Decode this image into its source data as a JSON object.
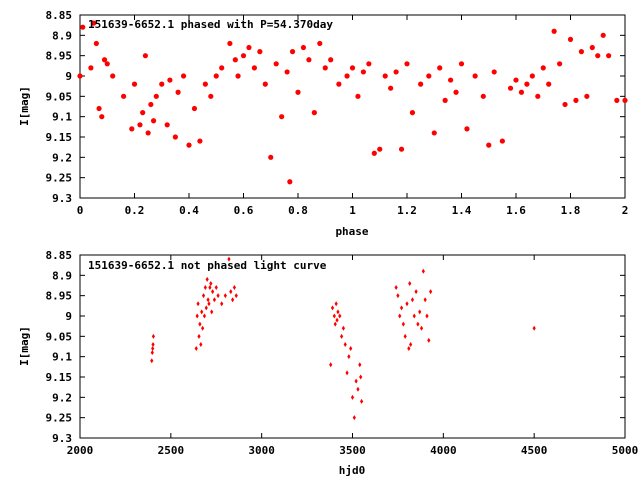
{
  "chart_data": [
    {
      "type": "scatter",
      "title": "151639-6652.1 phased with P=54.370day",
      "xlabel": "phase",
      "ylabel": "I[mag]",
      "xlim": [
        0,
        2
      ],
      "ylim": [
        8.85,
        9.3
      ],
      "y_inverted": true,
      "xticks": [
        "0",
        "0.2",
        "0.4",
        "0.6",
        "0.8",
        "1",
        "1.2",
        "1.4",
        "1.6",
        "1.8",
        "2"
      ],
      "yticks": [
        "8.85",
        "8.9",
        "8.95",
        "9",
        "9.05",
        "9.1",
        "9.15",
        "9.2",
        "9.25",
        "9.3"
      ],
      "grid": false,
      "marker_color": "#ff0000",
      "x": [
        0.0,
        0.01,
        0.04,
        0.05,
        0.06,
        0.07,
        0.08,
        0.09,
        0.1,
        0.12,
        0.16,
        0.19,
        0.2,
        0.22,
        0.23,
        0.24,
        0.25,
        0.26,
        0.27,
        0.28,
        0.3,
        0.32,
        0.33,
        0.35,
        0.36,
        0.38,
        0.4,
        0.42,
        0.44,
        0.46,
        0.48,
        0.5,
        0.52,
        0.55,
        0.57,
        0.58,
        0.6,
        0.62,
        0.64,
        0.66,
        0.68,
        0.7,
        0.72,
        0.74,
        0.76,
        0.77,
        0.78,
        0.8,
        0.82,
        0.84,
        0.86,
        0.88,
        0.9,
        0.92,
        0.95,
        0.98,
        1.0,
        1.02,
        1.04,
        1.06,
        1.08,
        1.1,
        1.12,
        1.14,
        1.16,
        1.18,
        1.2,
        1.22,
        1.25,
        1.28,
        1.3,
        1.32,
        1.34,
        1.36,
        1.38,
        1.4,
        1.42,
        1.45,
        1.48,
        1.5,
        1.52,
        1.55,
        1.58,
        1.6,
        1.62,
        1.64,
        1.66,
        1.68,
        1.7,
        1.72,
        1.74,
        1.76,
        1.78,
        1.8,
        1.82,
        1.84,
        1.86,
        1.88,
        1.9,
        1.92,
        1.94,
        1.97,
        2.0
      ],
      "y": [
        9.0,
        8.88,
        8.98,
        8.87,
        8.92,
        9.08,
        9.1,
        8.96,
        8.97,
        9.0,
        9.05,
        9.13,
        9.02,
        9.12,
        9.09,
        8.95,
        9.14,
        9.07,
        9.11,
        9.05,
        9.02,
        9.12,
        9.01,
        9.15,
        9.04,
        9.0,
        9.17,
        9.08,
        9.16,
        9.02,
        9.05,
        9.0,
        8.98,
        8.92,
        8.96,
        9.0,
        8.95,
        8.93,
        8.98,
        8.94,
        9.02,
        9.2,
        8.97,
        9.1,
        8.99,
        9.26,
        8.94,
        9.04,
        8.93,
        8.96,
        9.09,
        8.92,
        8.98,
        8.96,
        9.02,
        9.0,
        8.98,
        9.05,
        8.99,
        8.97,
        9.19,
        9.18,
        9.0,
        9.03,
        8.99,
        9.18,
        8.97,
        9.09,
        9.02,
        9.0,
        9.14,
        8.98,
        9.06,
        9.01,
        9.04,
        8.97,
        9.13,
        9.0,
        9.05,
        9.17,
        8.99,
        9.16,
        9.03,
        9.01,
        9.04,
        9.02,
        9.0,
        9.05,
        8.98,
        9.02,
        8.89,
        8.97,
        9.07,
        8.91,
        9.06,
        8.94,
        9.05,
        8.93,
        8.95,
        8.9,
        8.95,
        9.06,
        9.06
      ],
      "tag": "phased"
    },
    {
      "type": "scatter",
      "title": "151639-6652.1 not phased light curve",
      "xlabel": "hjd0",
      "ylabel": "I[mag]",
      "xlim": [
        2000,
        5000
      ],
      "ylim": [
        8.85,
        9.3
      ],
      "y_inverted": true,
      "xticks": [
        "2000",
        "2500",
        "3000",
        "3500",
        "4000",
        "4500",
        "5000"
      ],
      "yticks": [
        "8.85",
        "8.9",
        "8.95",
        "9",
        "9.05",
        "9.1",
        "9.15",
        "9.2",
        "9.25",
        "9.3"
      ],
      "grid": false,
      "marker_color": "#ff0000",
      "x": [
        2395,
        2398,
        2400,
        2402,
        2404,
        2640,
        2645,
        2650,
        2655,
        2660,
        2665,
        2670,
        2675,
        2680,
        2685,
        2690,
        2695,
        2700,
        2705,
        2710,
        2715,
        2720,
        2725,
        2730,
        2740,
        2750,
        2760,
        2780,
        2800,
        2820,
        2830,
        2840,
        2850,
        2860,
        3380,
        3390,
        3400,
        3405,
        3410,
        3415,
        3420,
        3430,
        3440,
        3450,
        3460,
        3470,
        3480,
        3490,
        3500,
        3510,
        3520,
        3530,
        3540,
        3545,
        3550,
        3740,
        3750,
        3760,
        3770,
        3780,
        3790,
        3800,
        3810,
        3815,
        3820,
        3830,
        3840,
        3850,
        3860,
        3870,
        3880,
        3890,
        3900,
        3910,
        3920,
        3930,
        4500
      ],
      "y": [
        9.11,
        9.09,
        9.08,
        9.07,
        9.05,
        9.08,
        9.0,
        8.97,
        9.05,
        9.02,
        9.07,
        8.99,
        9.03,
        8.95,
        9.0,
        8.93,
        8.98,
        8.91,
        8.96,
        8.97,
        8.93,
        8.92,
        8.99,
        8.94,
        8.96,
        8.93,
        8.95,
        8.97,
        8.95,
        8.86,
        8.94,
        8.96,
        8.93,
        8.95,
        9.12,
        8.98,
        9.0,
        9.02,
        8.97,
        9.01,
        8.99,
        9.0,
        9.05,
        9.03,
        9.07,
        9.14,
        9.1,
        9.08,
        9.2,
        9.25,
        9.16,
        9.18,
        9.12,
        9.15,
        9.21,
        8.93,
        8.95,
        9.0,
        8.98,
        9.02,
        9.05,
        8.97,
        9.08,
        8.92,
        9.07,
        8.96,
        9.0,
        8.94,
        9.02,
        8.99,
        9.03,
        8.89,
        8.96,
        9.0,
        9.06,
        8.94,
        9.03
      ],
      "tag": "raw"
    }
  ]
}
